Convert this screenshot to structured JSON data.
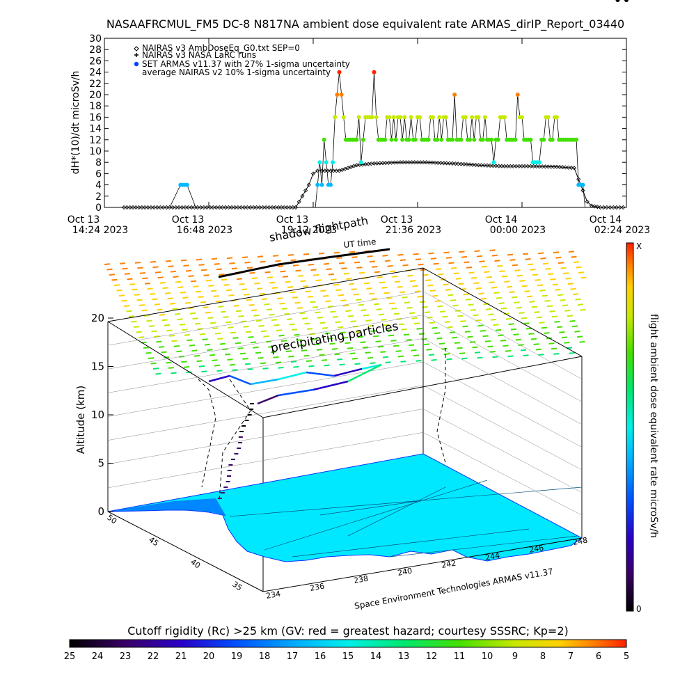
{
  "title": "NASAAFRCMUL_FM5 DC-8   N817NA ambient dose equivalent rate ARMAS_dirIP_Report_03440",
  "chart_data": [
    {
      "type": "scatter",
      "ylabel": "dH*(10)/dt microSv/h",
      "ylim": [
        0,
        30
      ],
      "y_ticks": [
        "0",
        "2",
        "4",
        "6",
        "8",
        "10",
        "12",
        "14",
        "16",
        "18",
        "20",
        "22",
        "24",
        "26",
        "28",
        "30"
      ],
      "x_ticks": [
        {
          "line1": "Oct 13",
          "line2": "14:24 2023"
        },
        {
          "line1": "Oct 13",
          "line2": "16:48 2023"
        },
        {
          "line1": "Oct 13",
          "line2": "19:12 2023"
        },
        {
          "line1": "Oct 13",
          "line2": "21:36 2023"
        },
        {
          "line1": "Oct 14",
          "line2": "00:00 2023"
        },
        {
          "line1": "Oct 14",
          "line2": "02:24 2023"
        }
      ],
      "legend": [
        {
          "symbol": "diamond",
          "label": "NAIRAS v3 AmbDoseEq_G0.txt SEP=0"
        },
        {
          "symbol": "plus",
          "label": "NAIRAS v3 NASA LaRC runs"
        },
        {
          "symbol": "dot",
          "label": "SET ARMAS v11.37 with 27% 1-sigma uncertainty"
        },
        {
          "symbol": "none",
          "label": "average NAIRAS v2 10% 1-sigma uncertainty"
        }
      ],
      "series": [
        {
          "name": "SET ARMAS v11.37 with 27% 1-sigma uncertainty",
          "x_hours_from_tick0": [
            0.45,
            0.6,
            0.9,
            1.2,
            1.5,
            1.75,
            1.8,
            1.85,
            1.9,
            2.1,
            2.4,
            2.7,
            3.0,
            3.3,
            3.6,
            3.9,
            4.2,
            4.5,
            4.7,
            4.85,
            4.9,
            4.95,
            5.0,
            5.05,
            5.1,
            5.15,
            5.2,
            5.25,
            5.3,
            5.35,
            5.4,
            5.45,
            5.5,
            5.55,
            5.6,
            5.65,
            5.7,
            5.75,
            5.8,
            5.85,
            5.9,
            5.95,
            6.0,
            6.05,
            6.1,
            6.15,
            6.2,
            6.25,
            6.3,
            6.35,
            6.4,
            6.45,
            6.5,
            6.55,
            6.6,
            6.65,
            6.7,
            6.75,
            6.8,
            6.85,
            6.9,
            6.95,
            7.0,
            7.05,
            7.1,
            7.15,
            7.2,
            7.25,
            7.3,
            7.35,
            7.4,
            7.45,
            7.5,
            7.55,
            7.6,
            7.65,
            7.7,
            7.75,
            7.8,
            7.85,
            7.9,
            7.95,
            8.0,
            8.05,
            8.1,
            8.15,
            8.2,
            8.25,
            8.3,
            8.35,
            8.4,
            8.45,
            8.5,
            8.55,
            8.6,
            8.65,
            8.7,
            8.75,
            8.8,
            8.85,
            8.9,
            8.95,
            9.0,
            9.05,
            9.1,
            9.15,
            9.2,
            9.25,
            9.3,
            9.35,
            9.4,
            9.45,
            9.5,
            9.55,
            9.6,
            9.65,
            9.7,
            9.75,
            9.8,
            9.85,
            9.9,
            9.95,
            10.0,
            10.05,
            10.1,
            10.15,
            10.2,
            10.25,
            10.3,
            10.35,
            10.4,
            10.45,
            10.5,
            10.55,
            10.6,
            10.65,
            10.7,
            10.75,
            10.8,
            10.85,
            10.9,
            10.95,
            11.0,
            11.05,
            11.1,
            11.15,
            11.2,
            11.3,
            11.5,
            11.8,
            12.0
          ],
          "values": [
            0,
            0,
            0,
            0,
            0,
            4,
            4,
            4,
            4,
            0,
            0,
            0,
            0,
            0,
            0,
            0,
            0,
            0,
            0,
            0,
            4,
            8,
            4,
            12,
            8,
            4,
            4,
            8,
            16,
            20,
            24,
            20,
            16,
            12,
            12,
            12,
            12,
            12,
            12,
            16,
            8,
            12,
            16,
            16,
            16,
            16,
            24,
            16,
            12,
            12,
            12,
            12,
            16,
            16,
            12,
            16,
            12,
            16,
            16,
            12,
            16,
            12,
            12,
            16,
            12,
            12,
            16,
            16,
            12,
            12,
            12,
            12,
            16,
            16,
            12,
            12,
            16,
            12,
            16,
            16,
            12,
            12,
            12,
            20,
            12,
            12,
            12,
            16,
            16,
            12,
            12,
            16,
            12,
            16,
            16,
            12,
            12,
            16,
            12,
            12,
            12,
            8,
            12,
            12,
            16,
            16,
            16,
            12,
            12,
            12,
            12,
            12,
            20,
            16,
            16,
            12,
            12,
            12,
            12,
            8,
            8,
            8,
            8,
            12,
            12,
            16,
            16,
            12,
            12,
            16,
            16,
            12,
            12,
            12,
            12,
            12,
            12,
            12,
            12,
            12,
            4,
            4,
            4,
            0,
            0,
            0,
            0,
            0,
            0
          ],
          "note": "colors follow the dose-rate color bar"
        },
        {
          "name": "NAIRAS v3 AmbDoseEq_G0.txt SEP=0",
          "x_hours_from_tick0": [
            0.45,
            1.0,
            2.0,
            3.0,
            4.0,
            4.4,
            4.55,
            4.7,
            4.8,
            4.9,
            5.0,
            5.2,
            5.4,
            5.6,
            5.8,
            6.2,
            6.8,
            7.4,
            8.0,
            8.6,
            9.2,
            9.8,
            10.4,
            10.8,
            10.9,
            11.0,
            11.1,
            11.2,
            11.4,
            11.7,
            12.0
          ],
          "values": [
            0,
            0,
            0,
            0,
            0,
            0,
            2,
            4,
            6,
            6.5,
            6.5,
            6.5,
            6.5,
            7,
            7.5,
            7.8,
            8,
            8,
            7.8,
            7.5,
            7.3,
            7.3,
            7.2,
            7,
            5,
            3,
            1,
            0.3,
            0,
            0,
            0
          ]
        }
      ]
    },
    {
      "type": "scatter",
      "subtype": "3d-flight-track",
      "zlabel": "Altitude (km)",
      "z_ticks": [
        "0",
        "5",
        "10",
        "15",
        "20"
      ],
      "lat_ticks": [
        "50",
        "45",
        "40",
        "35"
      ],
      "lon_ticks": [
        "234",
        "236",
        "238",
        "240",
        "242",
        "244",
        "246",
        "248"
      ],
      "labels": [
        "shadow flightpath",
        "flightpath",
        "UT time",
        "precipitating particles"
      ],
      "credit": "Space Environment Technologies ARMAS v11.37",
      "colorbar_right": {
        "label": "flight ambient dose equivalent rate microSv/h",
        "top": "X",
        "bottom": "0"
      },
      "colorbar_bottom": {
        "label": "Cutoff rigidity (Rc) >25 km (GV: red = greatest hazard; courtesy SSSRC; Kp=2)",
        "ticks": [
          "25",
          "24",
          "23",
          "22",
          "21",
          "20",
          "19",
          "18",
          "17",
          "16",
          "15",
          "14",
          "13",
          "12",
          "11",
          "10",
          "9",
          "8",
          "7",
          "6",
          "5"
        ]
      }
    }
  ],
  "colors": {
    "gradient": [
      "#000000",
      "#3a0066",
      "#2a00c8",
      "#0050ff",
      "#00b8ff",
      "#00f0e8",
      "#00e870",
      "#44e000",
      "#c8e800",
      "#ffd000",
      "#ff8000",
      "#ff2000"
    ]
  }
}
